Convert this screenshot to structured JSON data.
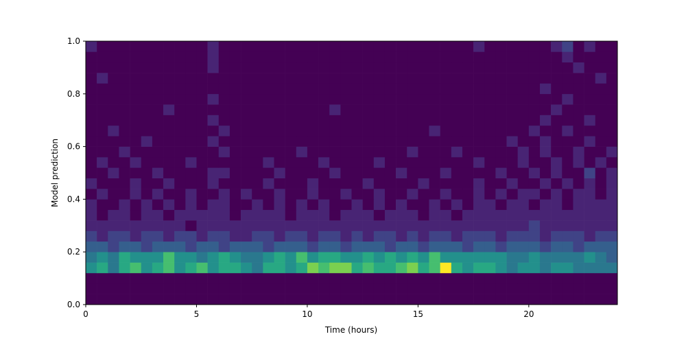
{
  "chart_data": {
    "type": "heatmap",
    "colormap": "viridis",
    "clim": [
      0,
      10
    ],
    "x_label": "Time (hours)",
    "y_label": "Model prediction",
    "xlim": [
      0,
      24
    ],
    "ylim": [
      0,
      1
    ],
    "xticks": [
      0,
      5,
      10,
      15,
      20
    ],
    "yticks": [
      {
        "value": 0,
        "label": "0.0"
      },
      {
        "value": 0.2,
        "label": "0.2"
      },
      {
        "value": 0.4,
        "label": "0.4"
      },
      {
        "value": 0.6,
        "label": "0.6"
      },
      {
        "value": 0.8,
        "label": "0.8"
      },
      {
        "value": 1,
        "label": "1.0"
      }
    ],
    "xbins": [
      0,
      0.5,
      1,
      1.5,
      2,
      2.5,
      3,
      3.5,
      4,
      4.5,
      5,
      5.5,
      6,
      6.5,
      7,
      7.5,
      8,
      8.5,
      9,
      9.5,
      10,
      10.5,
      11,
      11.5,
      12,
      12.5,
      13,
      13.5,
      14,
      14.5,
      15,
      15.5,
      16,
      16.5,
      17,
      17.5,
      18,
      18.5,
      19,
      19.5,
      20,
      20.5,
      21,
      21.5,
      22,
      22.5,
      23,
      23.5,
      24
    ],
    "ybins": [
      0,
      0.04,
      0.08,
      0.12,
      0.16,
      0.2,
      0.24,
      0.28,
      0.32,
      0.36,
      0.4,
      0.44,
      0.48,
      0.52,
      0.56,
      0.6,
      0.64,
      0.68,
      0.72,
      0.76,
      0.8,
      0.84,
      0.88,
      0.92,
      0.96,
      1
    ],
    "z": [
      [
        0,
        0,
        0,
        0,
        0,
        0,
        0,
        0,
        0,
        0,
        0,
        0,
        0,
        0,
        0,
        0,
        0,
        0,
        0,
        0,
        0,
        0,
        0,
        0,
        0,
        0,
        0,
        0,
        0,
        0,
        0,
        0,
        0,
        0,
        0,
        0,
        0,
        0,
        0,
        0,
        0,
        0,
        0,
        0,
        0,
        0,
        0,
        0
      ],
      [
        0,
        0,
        0,
        0,
        0,
        0,
        0,
        0,
        0,
        0,
        0,
        0,
        0,
        0,
        0,
        0,
        0,
        0,
        0,
        0,
        0,
        0,
        0,
        0,
        0,
        0,
        0,
        0,
        0,
        0,
        0,
        0,
        0,
        0,
        0,
        0,
        0,
        0,
        0,
        0,
        0,
        0,
        0,
        0,
        0,
        0,
        0,
        0
      ],
      [
        0,
        0,
        0,
        0,
        0,
        0,
        0,
        0,
        0,
        0,
        0,
        0,
        0,
        0,
        0,
        0,
        0,
        0,
        0,
        0,
        0,
        0,
        0,
        0,
        0,
        0,
        0,
        0,
        0,
        0,
        0,
        0,
        0,
        0,
        0,
        0,
        0,
        0,
        0,
        0,
        0,
        0,
        0,
        0,
        0,
        0,
        0,
        0
      ],
      [
        5,
        6,
        4,
        6,
        7,
        5,
        6,
        7,
        5,
        6,
        7,
        5,
        6,
        6,
        5,
        4,
        6,
        6,
        5,
        6,
        8,
        7,
        8,
        8,
        6,
        7,
        6,
        6,
        7,
        8,
        6,
        7,
        10,
        6,
        5,
        6,
        6,
        5,
        4,
        5,
        5,
        4,
        5,
        5,
        4,
        4,
        4,
        4
      ],
      [
        4,
        5,
        4,
        6,
        5,
        5,
        5,
        7,
        5,
        5,
        4,
        5,
        6,
        5,
        4,
        4,
        5,
        6,
        5,
        7,
        5,
        6,
        6,
        5,
        5,
        6,
        5,
        6,
        5,
        6,
        5,
        7,
        5,
        5,
        5,
        5,
        5,
        5,
        4,
        4,
        5,
        4,
        4,
        4,
        4,
        5,
        4,
        3
      ],
      [
        3,
        3,
        2,
        3,
        3,
        2,
        3,
        3,
        3,
        2,
        3,
        3,
        2,
        3,
        3,
        3,
        2,
        3,
        3,
        3,
        2,
        3,
        3,
        2,
        3,
        3,
        3,
        2,
        3,
        3,
        2,
        3,
        3,
        3,
        2,
        3,
        3,
        2,
        3,
        3,
        3,
        2,
        3,
        3,
        2,
        3,
        3,
        3
      ],
      [
        2,
        1,
        2,
        2,
        1,
        2,
        2,
        1,
        2,
        2,
        1,
        2,
        2,
        1,
        1,
        2,
        2,
        1,
        2,
        2,
        1,
        2,
        2,
        1,
        2,
        1,
        2,
        2,
        1,
        2,
        1,
        2,
        2,
        1,
        2,
        2,
        2,
        1,
        2,
        2,
        2,
        1,
        2,
        2,
        2,
        1,
        2,
        2
      ],
      [
        1,
        1,
        1,
        1,
        1,
        1,
        1,
        1,
        1,
        0,
        1,
        1,
        1,
        1,
        1,
        1,
        1,
        1,
        1,
        1,
        1,
        1,
        1,
        1,
        1,
        1,
        1,
        1,
        1,
        1,
        1,
        1,
        1,
        1,
        1,
        1,
        1,
        1,
        1,
        1,
        2,
        1,
        1,
        1,
        1,
        1,
        1,
        1
      ],
      [
        1,
        0,
        1,
        1,
        0,
        1,
        1,
        0,
        1,
        1,
        1,
        1,
        1,
        0,
        1,
        1,
        1,
        1,
        0,
        1,
        1,
        1,
        0,
        1,
        1,
        1,
        0,
        1,
        1,
        1,
        0,
        1,
        1,
        0,
        1,
        1,
        1,
        1,
        1,
        1,
        1,
        1,
        1,
        1,
        1,
        1,
        1,
        1
      ],
      [
        1,
        0,
        0,
        1,
        0,
        1,
        0,
        1,
        0,
        1,
        0,
        1,
        1,
        0,
        0,
        1,
        0,
        1,
        0,
        1,
        0,
        1,
        0,
        0,
        1,
        0,
        1,
        0,
        1,
        0,
        0,
        1,
        0,
        1,
        0,
        1,
        1,
        0,
        1,
        1,
        0,
        1,
        1,
        0,
        1,
        1,
        1,
        1
      ],
      [
        0,
        1,
        0,
        0,
        1,
        0,
        1,
        0,
        0,
        1,
        0,
        0,
        1,
        0,
        1,
        0,
        0,
        1,
        0,
        0,
        1,
        0,
        0,
        1,
        0,
        0,
        1,
        0,
        0,
        1,
        0,
        0,
        1,
        0,
        0,
        1,
        0,
        1,
        0,
        1,
        1,
        0,
        1,
        0,
        1,
        1,
        0,
        1
      ],
      [
        1,
        0,
        0,
        0,
        1,
        0,
        0,
        1,
        0,
        0,
        0,
        1,
        0,
        0,
        0,
        0,
        1,
        0,
        0,
        0,
        1,
        0,
        0,
        0,
        0,
        1,
        0,
        0,
        0,
        0,
        1,
        0,
        0,
        0,
        0,
        1,
        0,
        0,
        1,
        0,
        0,
        1,
        0,
        1,
        0,
        1,
        0,
        1
      ],
      [
        0,
        0,
        1,
        0,
        0,
        0,
        1,
        0,
        0,
        0,
        0,
        1,
        1,
        0,
        0,
        0,
        0,
        1,
        0,
        0,
        0,
        0,
        1,
        0,
        0,
        0,
        0,
        0,
        1,
        0,
        0,
        0,
        1,
        0,
        0,
        0,
        0,
        1,
        0,
        0,
        1,
        0,
        1,
        0,
        0,
        2,
        0,
        1
      ],
      [
        0,
        1,
        0,
        0,
        1,
        0,
        0,
        0,
        0,
        1,
        0,
        0,
        0,
        0,
        0,
        0,
        1,
        0,
        0,
        0,
        0,
        1,
        0,
        0,
        0,
        0,
        1,
        0,
        0,
        0,
        0,
        0,
        0,
        0,
        0,
        1,
        0,
        0,
        0,
        1,
        0,
        0,
        1,
        0,
        1,
        0,
        1,
        0
      ],
      [
        0,
        0,
        0,
        1,
        0,
        0,
        0,
        0,
        0,
        0,
        0,
        0,
        1,
        0,
        0,
        0,
        0,
        0,
        0,
        1,
        0,
        0,
        0,
        0,
        0,
        0,
        0,
        0,
        0,
        1,
        0,
        0,
        0,
        1,
        0,
        0,
        0,
        0,
        0,
        1,
        0,
        1,
        0,
        0,
        1,
        0,
        0,
        1
      ],
      [
        0,
        0,
        0,
        0,
        0,
        1,
        0,
        0,
        0,
        0,
        0,
        1,
        0,
        0,
        0,
        0,
        0,
        0,
        0,
        0,
        0,
        0,
        0,
        0,
        0,
        0,
        0,
        0,
        0,
        0,
        0,
        0,
        0,
        0,
        0,
        0,
        0,
        0,
        1,
        0,
        0,
        1,
        0,
        0,
        0,
        1,
        0,
        0
      ],
      [
        0,
        0,
        1,
        0,
        0,
        0,
        0,
        0,
        0,
        0,
        0,
        0,
        1,
        0,
        0,
        0,
        0,
        0,
        0,
        0,
        0,
        0,
        0,
        0,
        0,
        0,
        0,
        0,
        0,
        0,
        0,
        1,
        0,
        0,
        0,
        0,
        0,
        0,
        0,
        0,
        1,
        0,
        0,
        1,
        0,
        0,
        0,
        0
      ],
      [
        0,
        0,
        0,
        0,
        0,
        0,
        0,
        0,
        0,
        0,
        0,
        1,
        0,
        0,
        0,
        0,
        0,
        0,
        0,
        0,
        0,
        0,
        0,
        0,
        0,
        0,
        0,
        0,
        0,
        0,
        0,
        0,
        0,
        0,
        0,
        0,
        0,
        0,
        0,
        0,
        0,
        1,
        0,
        0,
        0,
        1,
        0,
        0
      ],
      [
        0,
        0,
        0,
        0,
        0,
        0,
        0,
        1,
        0,
        0,
        0,
        0,
        0,
        0,
        0,
        0,
        0,
        0,
        0,
        0,
        0,
        0,
        1,
        0,
        0,
        0,
        0,
        0,
        0,
        0,
        0,
        0,
        0,
        0,
        0,
        0,
        0,
        0,
        0,
        0,
        0,
        0,
        1,
        0,
        0,
        0,
        0,
        0
      ],
      [
        0,
        0,
        0,
        0,
        0,
        0,
        0,
        0,
        0,
        0,
        0,
        1,
        0,
        0,
        0,
        0,
        0,
        0,
        0,
        0,
        0,
        0,
        0,
        0,
        0,
        0,
        0,
        0,
        0,
        0,
        0,
        0,
        0,
        0,
        0,
        0,
        0,
        0,
        0,
        0,
        0,
        0,
        0,
        1,
        0,
        0,
        0,
        0
      ],
      [
        0,
        0,
        0,
        0,
        0,
        0,
        0,
        0,
        0,
        0,
        0,
        0,
        0,
        0,
        0,
        0,
        0,
        0,
        0,
        0,
        0,
        0,
        0,
        0,
        0,
        0,
        0,
        0,
        0,
        0,
        0,
        0,
        0,
        0,
        0,
        0,
        0,
        0,
        0,
        0,
        0,
        1,
        0,
        0,
        0,
        0,
        0,
        0
      ],
      [
        0,
        1,
        0,
        0,
        0,
        0,
        0,
        0,
        0,
        0,
        0,
        0,
        0,
        0,
        0,
        0,
        0,
        0,
        0,
        0,
        0,
        0,
        0,
        0,
        0,
        0,
        0,
        0,
        0,
        0,
        0,
        0,
        0,
        0,
        0,
        0,
        0,
        0,
        0,
        0,
        0,
        0,
        0,
        0,
        0,
        0,
        1,
        0
      ],
      [
        0,
        0,
        0,
        0,
        0,
        0,
        0,
        0,
        0,
        0,
        0,
        1,
        0,
        0,
        0,
        0,
        0,
        0,
        0,
        0,
        0,
        0,
        0,
        0,
        0,
        0,
        0,
        0,
        0,
        0,
        0,
        0,
        0,
        0,
        0,
        0,
        0,
        0,
        0,
        0,
        0,
        0,
        0,
        0,
        1,
        0,
        0,
        0
      ],
      [
        0,
        0,
        0,
        0,
        0,
        0,
        0,
        0,
        0,
        0,
        0,
        1,
        0,
        0,
        0,
        0,
        0,
        0,
        0,
        0,
        0,
        0,
        0,
        0,
        0,
        0,
        0,
        0,
        0,
        0,
        0,
        0,
        0,
        0,
        0,
        0,
        0,
        0,
        0,
        0,
        0,
        0,
        0,
        1,
        0,
        0,
        0,
        0
      ],
      [
        1,
        0,
        0,
        0,
        0,
        0,
        0,
        0,
        0,
        0,
        0,
        1,
        0,
        0,
        0,
        0,
        0,
        0,
        0,
        0,
        0,
        0,
        0,
        0,
        0,
        0,
        0,
        0,
        0,
        0,
        0,
        0,
        0,
        0,
        0,
        1,
        0,
        0,
        0,
        0,
        0,
        0,
        1,
        2,
        0,
        1,
        0,
        0
      ]
    ]
  }
}
